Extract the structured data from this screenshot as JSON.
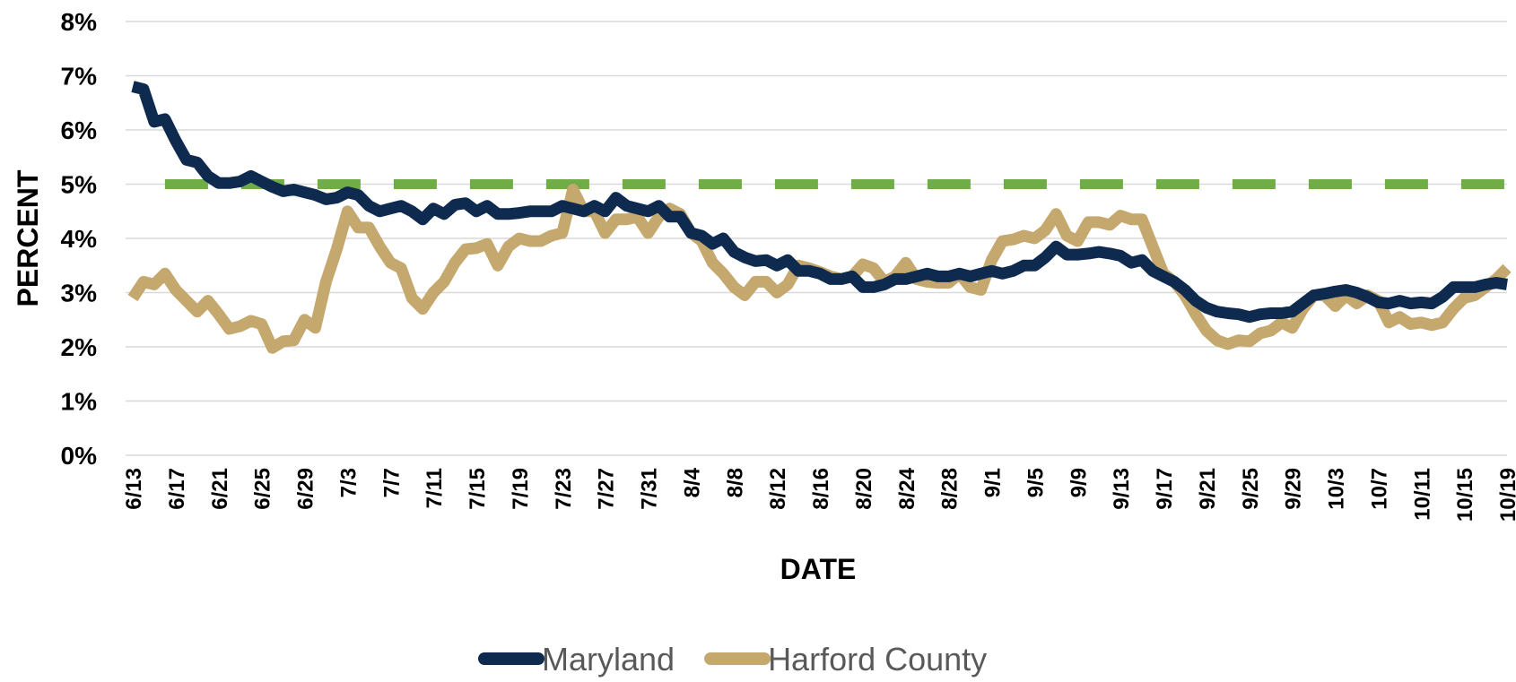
{
  "chart_data": {
    "type": "line",
    "x_label": "DATE",
    "y_label": "PERCENT",
    "categories": [
      "6/13",
      null,
      null,
      null,
      "6/17",
      null,
      null,
      null,
      "6/21",
      null,
      null,
      null,
      "6/25",
      null,
      null,
      null,
      "6/29",
      null,
      null,
      null,
      "7/3",
      null,
      null,
      null,
      "7/7",
      null,
      null,
      null,
      "7/11",
      null,
      null,
      null,
      "7/15",
      null,
      null,
      null,
      "7/19",
      null,
      null,
      null,
      "7/23",
      null,
      null,
      null,
      "7/27",
      null,
      null,
      null,
      "7/31",
      null,
      null,
      null,
      "8/4",
      null,
      null,
      null,
      "8/8",
      null,
      null,
      null,
      "8/12",
      null,
      null,
      null,
      "8/16",
      null,
      null,
      null,
      "8/20",
      null,
      null,
      null,
      "8/24",
      null,
      null,
      null,
      "8/28",
      null,
      null,
      null,
      "9/1",
      null,
      null,
      null,
      "9/5",
      null,
      null,
      null,
      "9/9",
      null,
      null,
      null,
      "9/13",
      null,
      null,
      null,
      "9/17",
      null,
      null,
      null,
      "9/21",
      null,
      null,
      null,
      "9/25",
      null,
      null,
      null,
      "9/29",
      null,
      null,
      null,
      "10/3",
      null,
      null,
      null,
      "10/7",
      null,
      null,
      null,
      "10/11",
      null,
      null,
      null,
      "10/15",
      null,
      null,
      null,
      "10/19"
    ],
    "series": [
      {
        "name": "Maryland",
        "color": "#0e2a4f",
        "values": [
          6.8,
          6.75,
          6.15,
          6.2,
          5.8,
          5.45,
          5.4,
          5.15,
          5.02,
          5.02,
          5.05,
          5.15,
          5.05,
          4.95,
          4.87,
          4.9,
          4.85,
          4.8,
          4.72,
          4.75,
          4.85,
          4.8,
          4.6,
          4.5,
          4.55,
          4.6,
          4.5,
          4.35,
          4.55,
          4.45,
          4.62,
          4.65,
          4.5,
          4.6,
          4.45,
          4.45,
          4.47,
          4.5,
          4.5,
          4.5,
          4.6,
          4.55,
          4.5,
          4.6,
          4.5,
          4.75,
          4.6,
          4.55,
          4.5,
          4.6,
          4.4,
          4.4,
          4.1,
          4.05,
          3.9,
          4.0,
          3.75,
          3.65,
          3.58,
          3.6,
          3.5,
          3.6,
          3.4,
          3.4,
          3.35,
          3.25,
          3.25,
          3.3,
          3.1,
          3.1,
          3.15,
          3.25,
          3.25,
          3.3,
          3.35,
          3.3,
          3.3,
          3.35,
          3.3,
          3.35,
          3.4,
          3.35,
          3.4,
          3.5,
          3.5,
          3.65,
          3.85,
          3.7,
          3.7,
          3.72,
          3.75,
          3.72,
          3.68,
          3.55,
          3.6,
          3.4,
          3.3,
          3.2,
          3.05,
          2.85,
          2.72,
          2.65,
          2.62,
          2.6,
          2.55,
          2.6,
          2.62,
          2.62,
          2.65,
          2.8,
          2.95,
          2.98,
          3.02,
          3.05,
          3.0,
          2.92,
          2.82,
          2.8,
          2.85,
          2.8,
          2.82,
          2.8,
          2.92,
          3.1,
          3.1,
          3.1,
          3.15,
          3.18,
          3.15
        ]
      },
      {
        "name": "Harford County",
        "color": "#c4a86e",
        "values": [
          2.9,
          3.2,
          3.15,
          3.35,
          3.05,
          2.85,
          2.65,
          2.85,
          2.6,
          2.33,
          2.38,
          2.48,
          2.42,
          1.98,
          2.1,
          2.12,
          2.5,
          2.35,
          3.2,
          3.8,
          4.5,
          4.2,
          4.2,
          3.85,
          3.55,
          3.45,
          2.9,
          2.7,
          3.0,
          3.2,
          3.55,
          3.8,
          3.82,
          3.9,
          3.5,
          3.85,
          4.0,
          3.95,
          3.95,
          4.05,
          4.1,
          4.9,
          4.5,
          4.5,
          4.1,
          4.35,
          4.35,
          4.4,
          4.1,
          4.4,
          4.55,
          4.45,
          4.1,
          3.95,
          3.55,
          3.35,
          3.1,
          2.95,
          3.2,
          3.2,
          3.0,
          3.15,
          3.5,
          3.45,
          3.38,
          3.3,
          3.25,
          3.3,
          3.52,
          3.45,
          3.2,
          3.3,
          3.55,
          3.25,
          3.2,
          3.18,
          3.18,
          3.35,
          3.1,
          3.05,
          3.6,
          3.95,
          3.98,
          4.05,
          4.0,
          4.15,
          4.45,
          4.05,
          3.95,
          4.3,
          4.3,
          4.25,
          4.42,
          4.35,
          4.35,
          3.85,
          3.35,
          3.2,
          2.95,
          2.6,
          2.3,
          2.12,
          2.05,
          2.12,
          2.1,
          2.25,
          2.3,
          2.45,
          2.35,
          2.7,
          2.95,
          2.95,
          2.75,
          2.95,
          2.8,
          2.95,
          2.85,
          2.45,
          2.55,
          2.42,
          2.45,
          2.4,
          2.45,
          2.7,
          2.9,
          2.95,
          3.1,
          3.25,
          3.45
        ]
      },
      {
        "color": "#70ad47",
        "dashed": true,
        "values": [
          null,
          null,
          null,
          5,
          5,
          5,
          5,
          5,
          5,
          5,
          5,
          5,
          5,
          5,
          5,
          5,
          5,
          5,
          5,
          5,
          5,
          5,
          5,
          5,
          5,
          5,
          5,
          5,
          5,
          5,
          5,
          5,
          5,
          5,
          5,
          5,
          5,
          5,
          5,
          5,
          5,
          5,
          5,
          5,
          5,
          5,
          5,
          5,
          5,
          5,
          5,
          5,
          5,
          5,
          5,
          5,
          5,
          5,
          5,
          5,
          5,
          5,
          5,
          5,
          5,
          5,
          5,
          5,
          5,
          5,
          5,
          5,
          5,
          5,
          5,
          5,
          5,
          5,
          5,
          5,
          5,
          5,
          5,
          5,
          5,
          5,
          5,
          5,
          5,
          5,
          5,
          5,
          5,
          5,
          5,
          5,
          5,
          5,
          5,
          5,
          5,
          5,
          5,
          5,
          5,
          5,
          5,
          5,
          5,
          5,
          5,
          5,
          5,
          5,
          5,
          5,
          5,
          5,
          5,
          5,
          5,
          5,
          5,
          5,
          5,
          5,
          5,
          5,
          5
        ]
      }
    ],
    "ylim": [
      0,
      8
    ],
    "yticks": [
      {
        "value": 0,
        "label": "0%"
      },
      {
        "value": 1,
        "label": "1%"
      },
      {
        "value": 2,
        "label": "2%"
      },
      {
        "value": 3,
        "label": "3%"
      },
      {
        "value": 4,
        "label": "4%"
      },
      {
        "value": 5,
        "label": "5%"
      },
      {
        "value": 6,
        "label": "6%"
      },
      {
        "value": 7,
        "label": "7%"
      },
      {
        "value": 8,
        "label": "8%"
      }
    ],
    "grid": true,
    "legend": "bottom"
  }
}
